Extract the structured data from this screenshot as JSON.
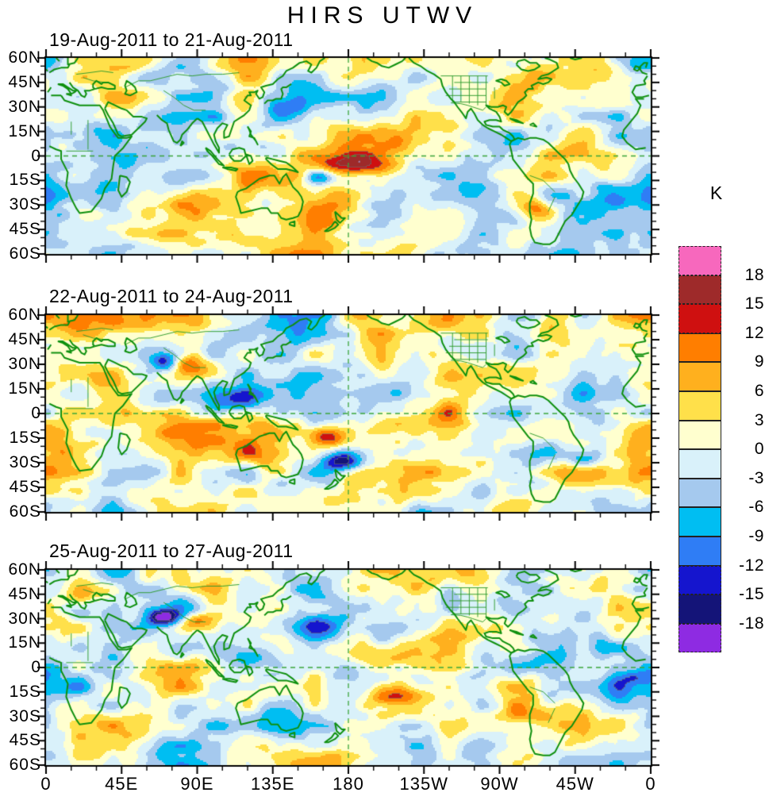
{
  "title": "HIRS UTWV",
  "colorbar": {
    "title": "K",
    "tick_labels": [
      "18",
      "15",
      "12",
      "9",
      "6",
      "3",
      "0",
      "-3",
      "-6",
      "-9",
      "-12",
      "-15",
      "-18"
    ]
  },
  "axes": {
    "lat_labels": [
      "60N",
      "45N",
      "30N",
      "15N",
      "0",
      "15S",
      "30S",
      "45S",
      "60S"
    ],
    "lon_labels": [
      "0",
      "45E",
      "90E",
      "135E",
      "180",
      "135W",
      "90W",
      "45W",
      "0"
    ]
  },
  "chart_data": {
    "type": "heatmap",
    "title": "HIRS UTWV",
    "units": "K",
    "levels": [
      -18,
      -15,
      -12,
      -9,
      -6,
      -3,
      0,
      3,
      6,
      9,
      12,
      15,
      18
    ],
    "palette_low_to_high": [
      "#8E2BE2",
      "#141478",
      "#1515CE",
      "#2F7DF5",
      "#00BEF2",
      "#A5C9EE",
      "#D9F1FA",
      "#FFFFCF",
      "#FFE04A",
      "#FFB01E",
      "#FF7E00",
      "#CF1010",
      "#9E2A2A",
      "#F768BD"
    ],
    "style_colors": {
      "coastline": "#0E900E",
      "country_border": "#2C9B2C",
      "gridline": "#3AA53A",
      "frame": "#000000",
      "contour_highlight": "#6E6E6E"
    },
    "lat_range": [
      -60,
      60
    ],
    "lon_range_deg_east": [
      0,
      360
    ],
    "grid_reference_lines": {
      "equator_lat": 0,
      "dateline_lon": 180
    },
    "panels": [
      {
        "label": "19-Aug-2011 to 21-Aug-2011",
        "notable_anomalies": [
          {
            "lon": 186,
            "lat": -6,
            "value": 16,
            "ext_lon": 16,
            "ext_lat": 5
          },
          {
            "lon": 163,
            "lat": -13,
            "value": -16,
            "ext_lon": 7,
            "ext_lat": 4
          },
          {
            "lon": 205,
            "lat": 2,
            "value": 7,
            "ext_lon": 18,
            "ext_lat": 6
          },
          {
            "lon": 140,
            "lat": 27,
            "value": -8,
            "ext_lon": 12,
            "ext_lat": 6
          },
          {
            "lon": 292,
            "lat": -33,
            "value": 12,
            "ext_lon": 10,
            "ext_lat": 5
          },
          {
            "lon": 25,
            "lat": 8,
            "value": 6,
            "ext_lon": 20,
            "ext_lat": 8
          },
          {
            "lon": 330,
            "lat": -25,
            "value": -7,
            "ext_lon": 15,
            "ext_lat": 6
          },
          {
            "lon": 100,
            "lat": -30,
            "value": 7,
            "ext_lon": 18,
            "ext_lat": 7
          }
        ]
      },
      {
        "label": "22-Aug-2011 to 24-Aug-2011",
        "notable_anomalies": [
          {
            "lon": 71,
            "lat": 31,
            "value": -14,
            "ext_lon": 6,
            "ext_lat": 4
          },
          {
            "lon": 87,
            "lat": 30,
            "value": 13,
            "ext_lon": 7,
            "ext_lat": 4
          },
          {
            "lon": 177,
            "lat": -29,
            "value": -17,
            "ext_lon": 9,
            "ext_lat": 5
          },
          {
            "lon": 169,
            "lat": -14,
            "value": 13,
            "ext_lon": 8,
            "ext_lat": 4
          },
          {
            "lon": 135,
            "lat": -26,
            "value": 9,
            "ext_lon": 15,
            "ext_lat": 6
          },
          {
            "lon": 320,
            "lat": -28,
            "value": -12,
            "ext_lon": 8,
            "ext_lat": 4
          },
          {
            "lon": 260,
            "lat": 25,
            "value": 6,
            "ext_lon": 15,
            "ext_lat": 6
          },
          {
            "lon": 110,
            "lat": 5,
            "value": -7,
            "ext_lon": 15,
            "ext_lat": 6
          },
          {
            "lon": 210,
            "lat": -5,
            "value": 7,
            "ext_lon": 20,
            "ext_lat": 6
          }
        ]
      },
      {
        "label": "25-Aug-2011 to 27-Aug-2011",
        "notable_anomalies": [
          {
            "lon": 70,
            "lat": 31,
            "value": -16,
            "ext_lon": 7,
            "ext_lat": 4
          },
          {
            "lon": 89,
            "lat": 27,
            "value": 12,
            "ext_lon": 8,
            "ext_lat": 4
          },
          {
            "lon": 30,
            "lat": 46,
            "value": 10,
            "ext_lon": 12,
            "ext_lat": 6
          },
          {
            "lon": 198,
            "lat": 8,
            "value": 9,
            "ext_lon": 14,
            "ext_lat": 7
          },
          {
            "lon": 208,
            "lat": -17,
            "value": 13,
            "ext_lon": 12,
            "ext_lat": 5
          },
          {
            "lon": 120,
            "lat": 8,
            "value": -9,
            "ext_lon": 12,
            "ext_lat": 6
          },
          {
            "lon": 165,
            "lat": 25,
            "value": -8,
            "ext_lon": 14,
            "ext_lat": 6
          },
          {
            "lon": 294,
            "lat": -29,
            "value": 7,
            "ext_lon": 10,
            "ext_lat": 5
          },
          {
            "lon": 345,
            "lat": -10,
            "value": -6,
            "ext_lon": 12,
            "ext_lat": 6
          }
        ]
      }
    ]
  }
}
